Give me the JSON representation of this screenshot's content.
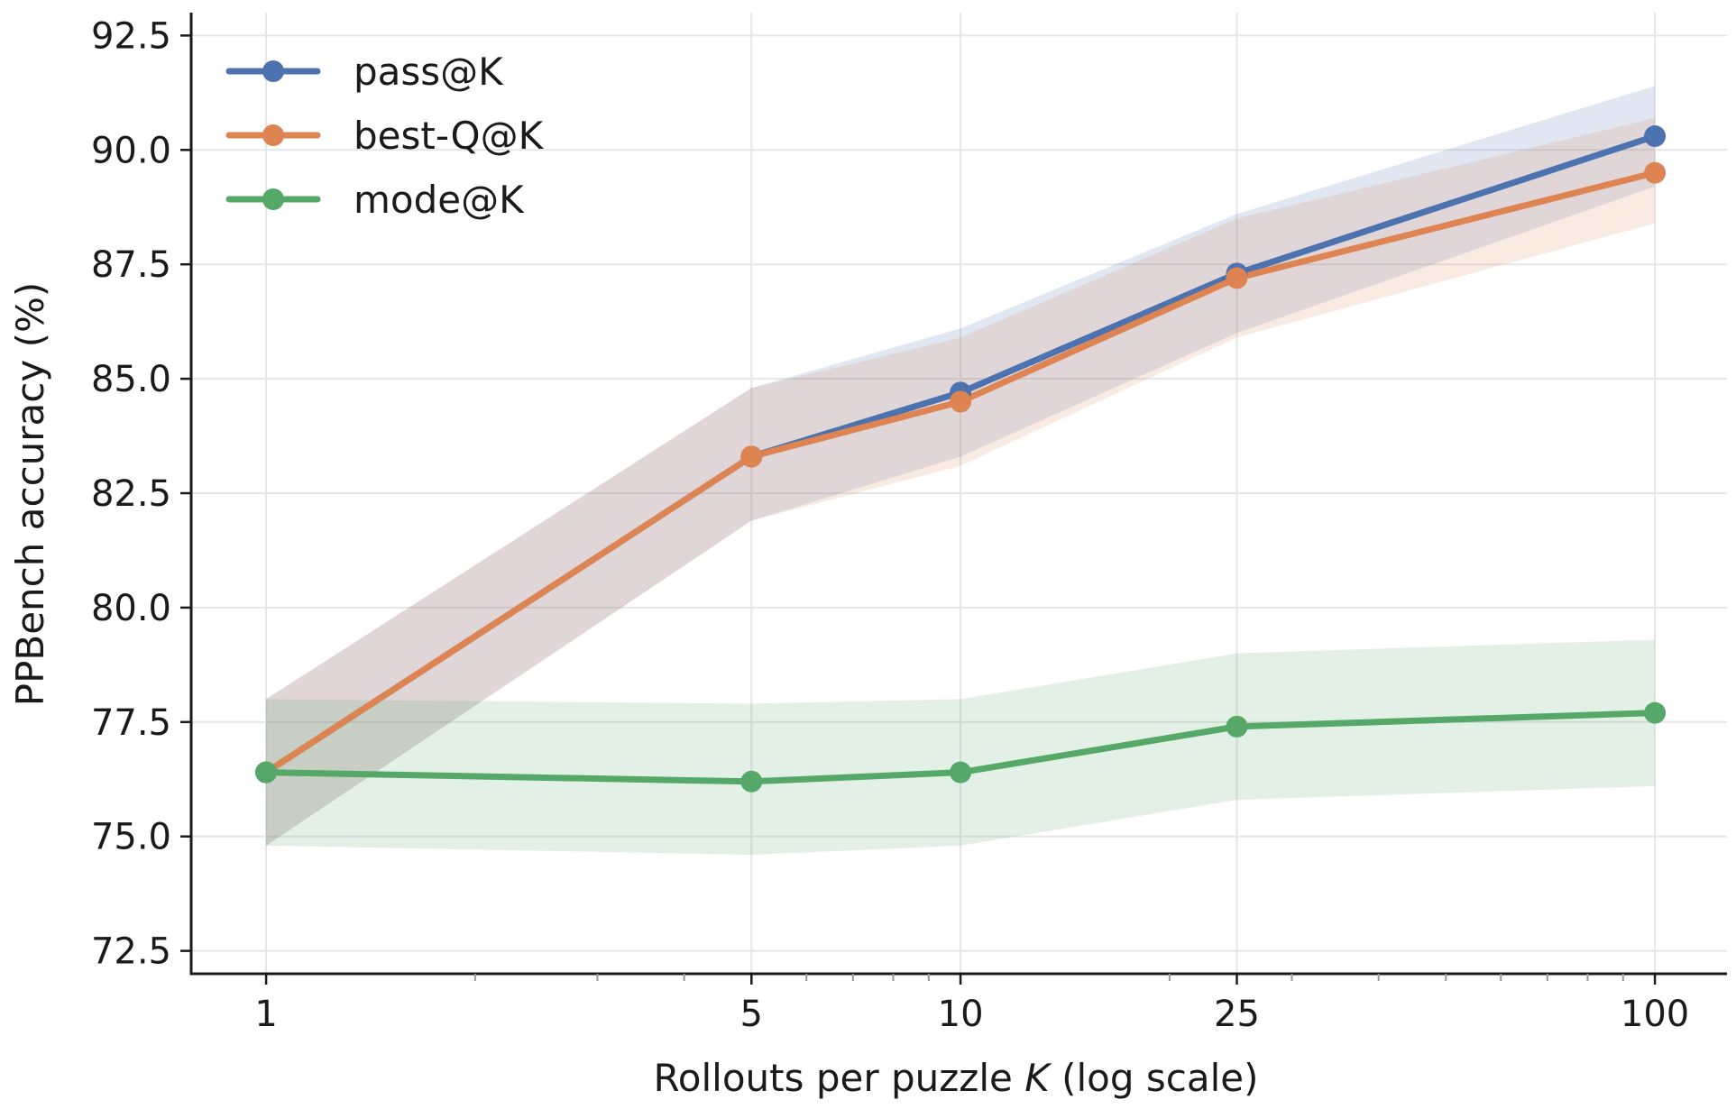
{
  "chart_data": {
    "type": "line",
    "xlabel_prefix": "Rollouts per puzzle ",
    "xlabel_var": "K",
    "xlabel_suffix": " (log scale)",
    "ylabel": "PPBench accuracy (%)",
    "xscale": "log",
    "xlim": [
      0.78,
      127
    ],
    "ylim": [
      72.0,
      93.0
    ],
    "xticks": [
      1,
      5,
      10,
      25,
      100
    ],
    "xtick_labels": [
      "1",
      "5",
      "10",
      "25",
      "100"
    ],
    "yticks": [
      72.5,
      75.0,
      77.5,
      80.0,
      82.5,
      85.0,
      87.5,
      90.0,
      92.5
    ],
    "ytick_labels": [
      "72.5",
      "75.0",
      "77.5",
      "80.0",
      "82.5",
      "85.0",
      "87.5",
      "90.0",
      "92.5"
    ],
    "grid": true,
    "legend_position": "top-left",
    "x": [
      1,
      5,
      10,
      25,
      100
    ],
    "series": [
      {
        "name": "pass@K",
        "color": "#4c72b0",
        "values": [
          76.4,
          83.3,
          84.7,
          87.3,
          90.3
        ],
        "band_low": [
          74.8,
          81.9,
          83.3,
          86.0,
          89.2
        ],
        "band_high": [
          78.0,
          84.8,
          86.1,
          88.6,
          91.4
        ]
      },
      {
        "name": "best-Q@K",
        "color": "#dd8452",
        "values": [
          76.4,
          83.3,
          84.5,
          87.2,
          89.5
        ],
        "band_low": [
          74.8,
          81.9,
          83.1,
          85.9,
          88.4
        ],
        "band_high": [
          78.0,
          84.8,
          85.9,
          88.5,
          90.7
        ]
      },
      {
        "name": "mode@K",
        "color": "#55a868",
        "values": [
          76.4,
          76.2,
          76.4,
          77.4,
          77.7
        ],
        "band_low": [
          74.8,
          74.6,
          74.8,
          75.8,
          76.1
        ],
        "band_high": [
          78.0,
          77.9,
          78.0,
          79.0,
          79.3
        ]
      }
    ]
  }
}
